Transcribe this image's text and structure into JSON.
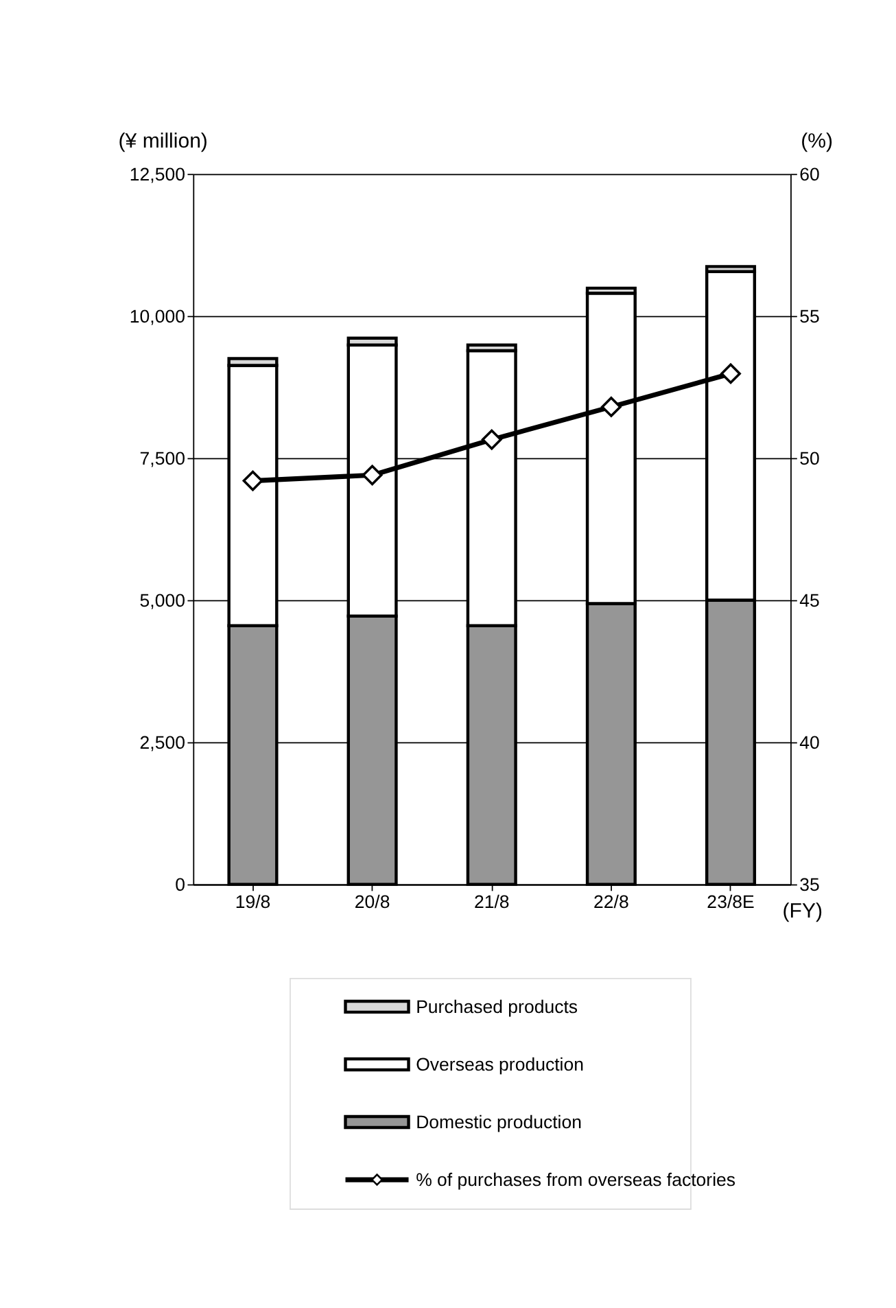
{
  "chart_data": {
    "type": "bar",
    "stacked": true,
    "categories": [
      "19/8",
      "20/8",
      "21/8",
      "22/8",
      "23/8E"
    ],
    "xlabel": "(FY)",
    "ylabel": "(¥ million)",
    "y2label": "(%)",
    "ylim": [
      0,
      12500
    ],
    "yticks": [
      {
        "value": 0,
        "label": "0"
      },
      {
        "value": 2500,
        "label": "2,500"
      },
      {
        "value": 5000,
        "label": "5,000"
      },
      {
        "value": 7500,
        "label": "7,500"
      },
      {
        "value": 10000,
        "label": "10,000"
      },
      {
        "value": 12500,
        "label": "12,500"
      }
    ],
    "y2lim": [
      35,
      60
    ],
    "y2ticks": [
      35,
      40,
      45,
      50,
      55,
      60
    ],
    "grid": "y",
    "legend": "bottom",
    "marker": "diamond",
    "line_style": "solid",
    "series": [
      {
        "name": "Domestic production",
        "color": "#969696",
        "values": [
          4550,
          4720,
          4550,
          4940,
          5000
        ]
      },
      {
        "name": "Overseas production",
        "color": "#ffffff",
        "values": [
          4580,
          4770,
          4840,
          5460,
          5780
        ]
      },
      {
        "name": "Purchased products",
        "color": "#d9d9d9",
        "values": [
          120,
          120,
          100,
          90,
          90
        ]
      },
      {
        "name": "% of purchases from overseas factories",
        "color": "#000000",
        "type": "line",
        "axis": "y2",
        "values": [
          49.2,
          49.4,
          50.65,
          51.8,
          52.97
        ]
      }
    ]
  }
}
